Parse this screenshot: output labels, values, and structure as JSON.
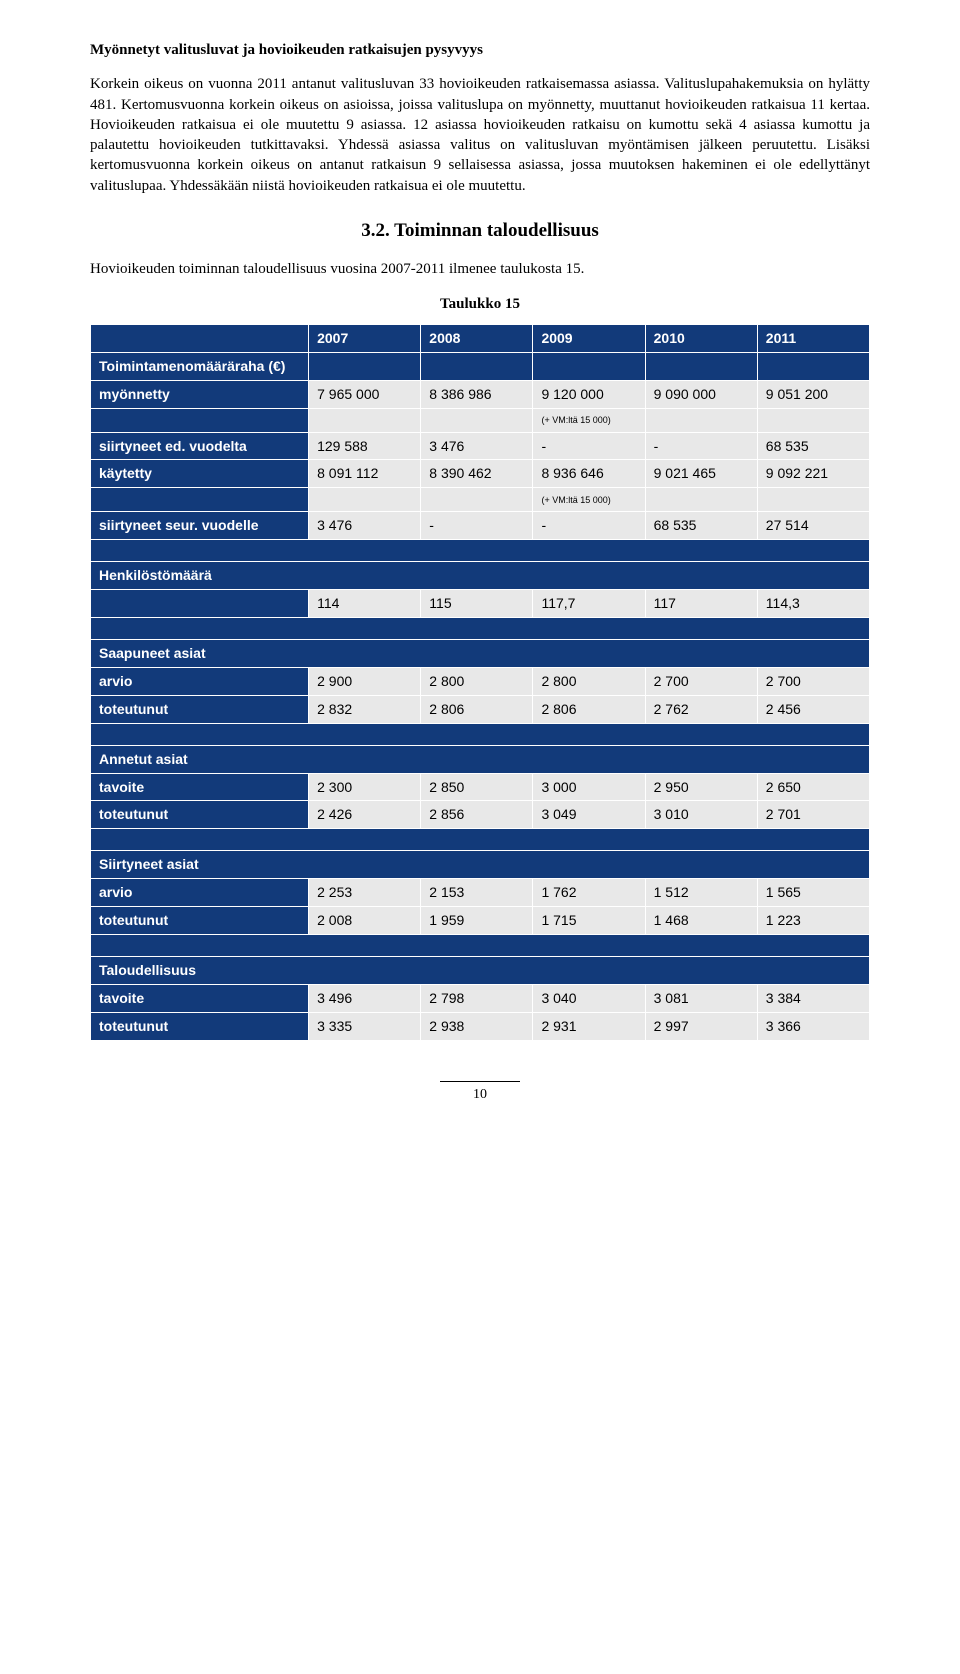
{
  "heading1": "Myönnetyt valitusluvat ja hovioikeuden ratkaisujen pysyvyys",
  "para1": "Korkein oikeus on vuonna 2011 antanut valitusluvan 33 hovioikeuden ratkaisemassa asiassa. Valituslupahakemuksia on hylätty 481. Kertomusvuonna korkein oikeus on asioissa, joissa valituslupa on myönnetty, muuttanut hovioikeuden ratkaisua 11 kertaa. Hovioikeuden ratkaisua ei ole muutettu 9 asiassa. 12 asiassa hovioikeuden ratkaisu on kumottu sekä 4 asiassa kumottu ja palautettu hovioikeuden tutkittavaksi. Yhdessä asiassa valitus on valitusluvan myöntämisen jälkeen peruutettu. Lisäksi kertomusvuonna korkein oikeus on antanut ratkaisun 9 sellaisessa asiassa, jossa muutoksen hakeminen ei ole edellyttänyt valituslupaa. Yhdessäkään niistä hovioikeuden ratkaisua ei ole muutettu.",
  "sectionTitle": "3.2. Toiminnan taloudellisuus",
  "intro": "Hovioikeuden toiminnan taloudellisuus vuosina 2007-2011 ilmenee taulukosta 15.",
  "tableLabel": "Taulukko 15",
  "years": [
    "2007",
    "2008",
    "2009",
    "2010",
    "2011"
  ],
  "groups": [
    {
      "title": "Toimintamenomääräraha (€)",
      "titleMultiCol": false,
      "rows": [
        {
          "label": "myönnetty",
          "vals": [
            "7 965 000",
            "8 386 986",
            "9 120 000",
            "9 090 000",
            "9 051 200"
          ]
        },
        {
          "note": true,
          "vals": [
            "",
            "",
            "(+ VM:ltä 15 000)",
            "",
            ""
          ]
        },
        {
          "label": "siirtyneet ed. vuodelta",
          "vals": [
            "129 588",
            "3 476",
            "-",
            "-",
            "68 535"
          ]
        },
        {
          "label": "käytetty",
          "vals": [
            "8 091 112",
            "8 390 462",
            "8 936 646",
            "9 021 465",
            "9 092 221"
          ]
        },
        {
          "note": true,
          "vals": [
            "",
            "",
            "(+ VM:ltä 15 000)",
            "",
            ""
          ]
        },
        {
          "label": "siirtyneet seur. vuodelle",
          "vals": [
            "3 476",
            "-",
            "-",
            "68 535",
            "27 514"
          ]
        }
      ]
    },
    {
      "title": "Henkilöstömäärä",
      "rows": [
        {
          "label": "",
          "vals": [
            "114",
            "115",
            "117,7",
            "117",
            "114,3"
          ]
        }
      ]
    },
    {
      "title": "Saapuneet asiat",
      "rows": [
        {
          "label": "arvio",
          "vals": [
            "2 900",
            "2 800",
            "2 800",
            "2 700",
            "2 700"
          ]
        },
        {
          "label": "toteutunut",
          "vals": [
            "2 832",
            "2 806",
            "2 806",
            "2 762",
            "2 456"
          ]
        }
      ]
    },
    {
      "title": "Annetut asiat",
      "rows": [
        {
          "label": "tavoite",
          "vals": [
            "2 300",
            "2 850",
            "3 000",
            "2 950",
            "2 650"
          ]
        },
        {
          "label": "toteutunut",
          "vals": [
            "2 426",
            "2 856",
            "3 049",
            "3 010",
            "2 701"
          ]
        }
      ]
    },
    {
      "title": "Siirtyneet asiat",
      "rows": [
        {
          "label": "arvio",
          "vals": [
            "2 253",
            "2 153",
            "1 762",
            "1 512",
            "1 565"
          ]
        },
        {
          "label": "toteutunut",
          "vals": [
            "2 008",
            "1 959",
            "1 715",
            "1 468",
            "1 223"
          ]
        }
      ]
    },
    {
      "title": "Taloudellisuus",
      "rows": [
        {
          "label": "tavoite",
          "vals": [
            "3 496",
            "2 798",
            "3 040",
            "3 081",
            "3 384"
          ]
        },
        {
          "label": "toteutunut",
          "vals": [
            "3 335",
            "2 938",
            "2 931",
            "2 997",
            "3 366"
          ]
        }
      ]
    }
  ],
  "pageNumber": "10"
}
